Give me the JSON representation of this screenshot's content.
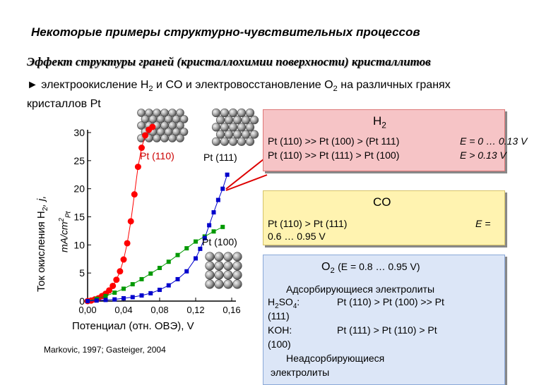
{
  "header": {
    "title": "Некоторые примеры структурно-чувствительных процессов",
    "subtitle": "Эффект структуры граней (кристаллохимии поверхности) кристаллитов",
    "bullet_prefix": "► электроокисление H",
    "bullet_mid1": " и CO и электровосстановление O",
    "bullet_mid2": " на различных гранях кристаллов Pt",
    "sub2": "2"
  },
  "h2_box": {
    "heading": "H",
    "heading_sub": "2",
    "line1": "Pt (110) >> Pt (100) > (Pt 111)",
    "line2": "Pt (110) >> Pt (111) > Pt (100)",
    "cond1": "E = 0 … 0.13 V",
    "cond2": "E > 0.13 V"
  },
  "co_box": {
    "heading": "CO",
    "line1": "Pt (110) > Pt (111)",
    "cond_label": "E =",
    "cond_value": "0.6 … 0.95 V"
  },
  "o2_box": {
    "heading": "O",
    "heading_sub": "2",
    "heading_range": "(E = 0.8 … 0.95 V)",
    "adsorbing": "Адсорбирующиеся электролиты",
    "h2so4_label": "H",
    "h2so4_sub1": "2",
    "h2so4_mid": "SO",
    "h2so4_sub2": "4",
    "h2so4_colon": ":",
    "h2so4_order": "Pt (110) > Pt (100) >> Pt",
    "h2so4_order_end": "(111)",
    "koh_label": "KOH:",
    "koh_order": "Pt (111) > Pt (110) > Pt",
    "koh_order_end": "(100)",
    "non_adsorbing": "Неадсорбирующиеся",
    "electrolytes": "электролиты"
  },
  "chart_labels": {
    "pt110": "Pt (110)",
    "pt111": "Pt (111)",
    "pt100": "Pt (100)",
    "ylabel_main": "Ток окисления H",
    "ylabel_sub": "2",
    "ylabel_end": ", j,",
    "yunit": "mA/cm",
    "yunit_sup": "2",
    "yunit_sub": "Pt",
    "xlabel": "Потенциал  (отн. ОВЭ),  V",
    "credit": "Markovic, 1997; Gasteiger, 2004"
  },
  "colors": {
    "pt110": "#ff0000",
    "pt100": "#009900",
    "pt111": "#0000cc",
    "arrow": "#dd0000"
  },
  "chart_data": {
    "type": "scatter",
    "xlabel": "Потенциал  (отн. ОВЭ),  V",
    "ylabel": "Ток окисления H2, j, mA/cm2 Pt",
    "xlim": [
      0,
      0.16
    ],
    "ylim": [
      0,
      30
    ],
    "x_ticks": [
      "0,00",
      "0,04",
      "0,08",
      "0,12",
      "0,16"
    ],
    "y_ticks": [
      "0",
      "5",
      "10",
      "15",
      "20",
      "25",
      "30"
    ],
    "series": [
      {
        "name": "Pt (110)",
        "color": "#ff0000",
        "x": [
          0.0,
          0.004,
          0.008,
          0.012,
          0.016,
          0.02,
          0.024,
          0.028,
          0.032,
          0.036,
          0.04,
          0.044,
          0.048,
          0.052,
          0.056,
          0.06,
          0.064,
          0.068,
          0.072
        ],
        "y": [
          0.0,
          0.1,
          0.3,
          0.5,
          0.9,
          1.3,
          1.9,
          2.7,
          3.8,
          5.3,
          7.4,
          10.3,
          14.2,
          19.0,
          23.9,
          27.3,
          29.5,
          30.5,
          31.0
        ]
      },
      {
        "name": "Pt (100)",
        "color": "#009900",
        "x": [
          0.0,
          0.01,
          0.02,
          0.03,
          0.04,
          0.05,
          0.06,
          0.07,
          0.08,
          0.09,
          0.1,
          0.11,
          0.12,
          0.13,
          0.14,
          0.15
        ],
        "y": [
          0.0,
          0.4,
          0.9,
          1.5,
          2.2,
          3.0,
          3.9,
          4.9,
          5.9,
          7.0,
          8.2,
          9.4,
          10.6,
          11.5,
          12.4,
          13.2
        ]
      },
      {
        "name": "Pt (111)",
        "color": "#0000cc",
        "x": [
          0.0,
          0.01,
          0.02,
          0.03,
          0.04,
          0.05,
          0.06,
          0.07,
          0.08,
          0.09,
          0.1,
          0.11,
          0.12,
          0.125,
          0.13,
          0.135,
          0.14,
          0.145,
          0.15,
          0.155
        ],
        "y": [
          0.0,
          0.1,
          0.2,
          0.3,
          0.5,
          0.7,
          1.0,
          1.4,
          2.0,
          2.8,
          3.9,
          5.3,
          7.6,
          9.3,
          11.2,
          13.5,
          15.8,
          18.0,
          20.0,
          22.5
        ]
      }
    ]
  }
}
